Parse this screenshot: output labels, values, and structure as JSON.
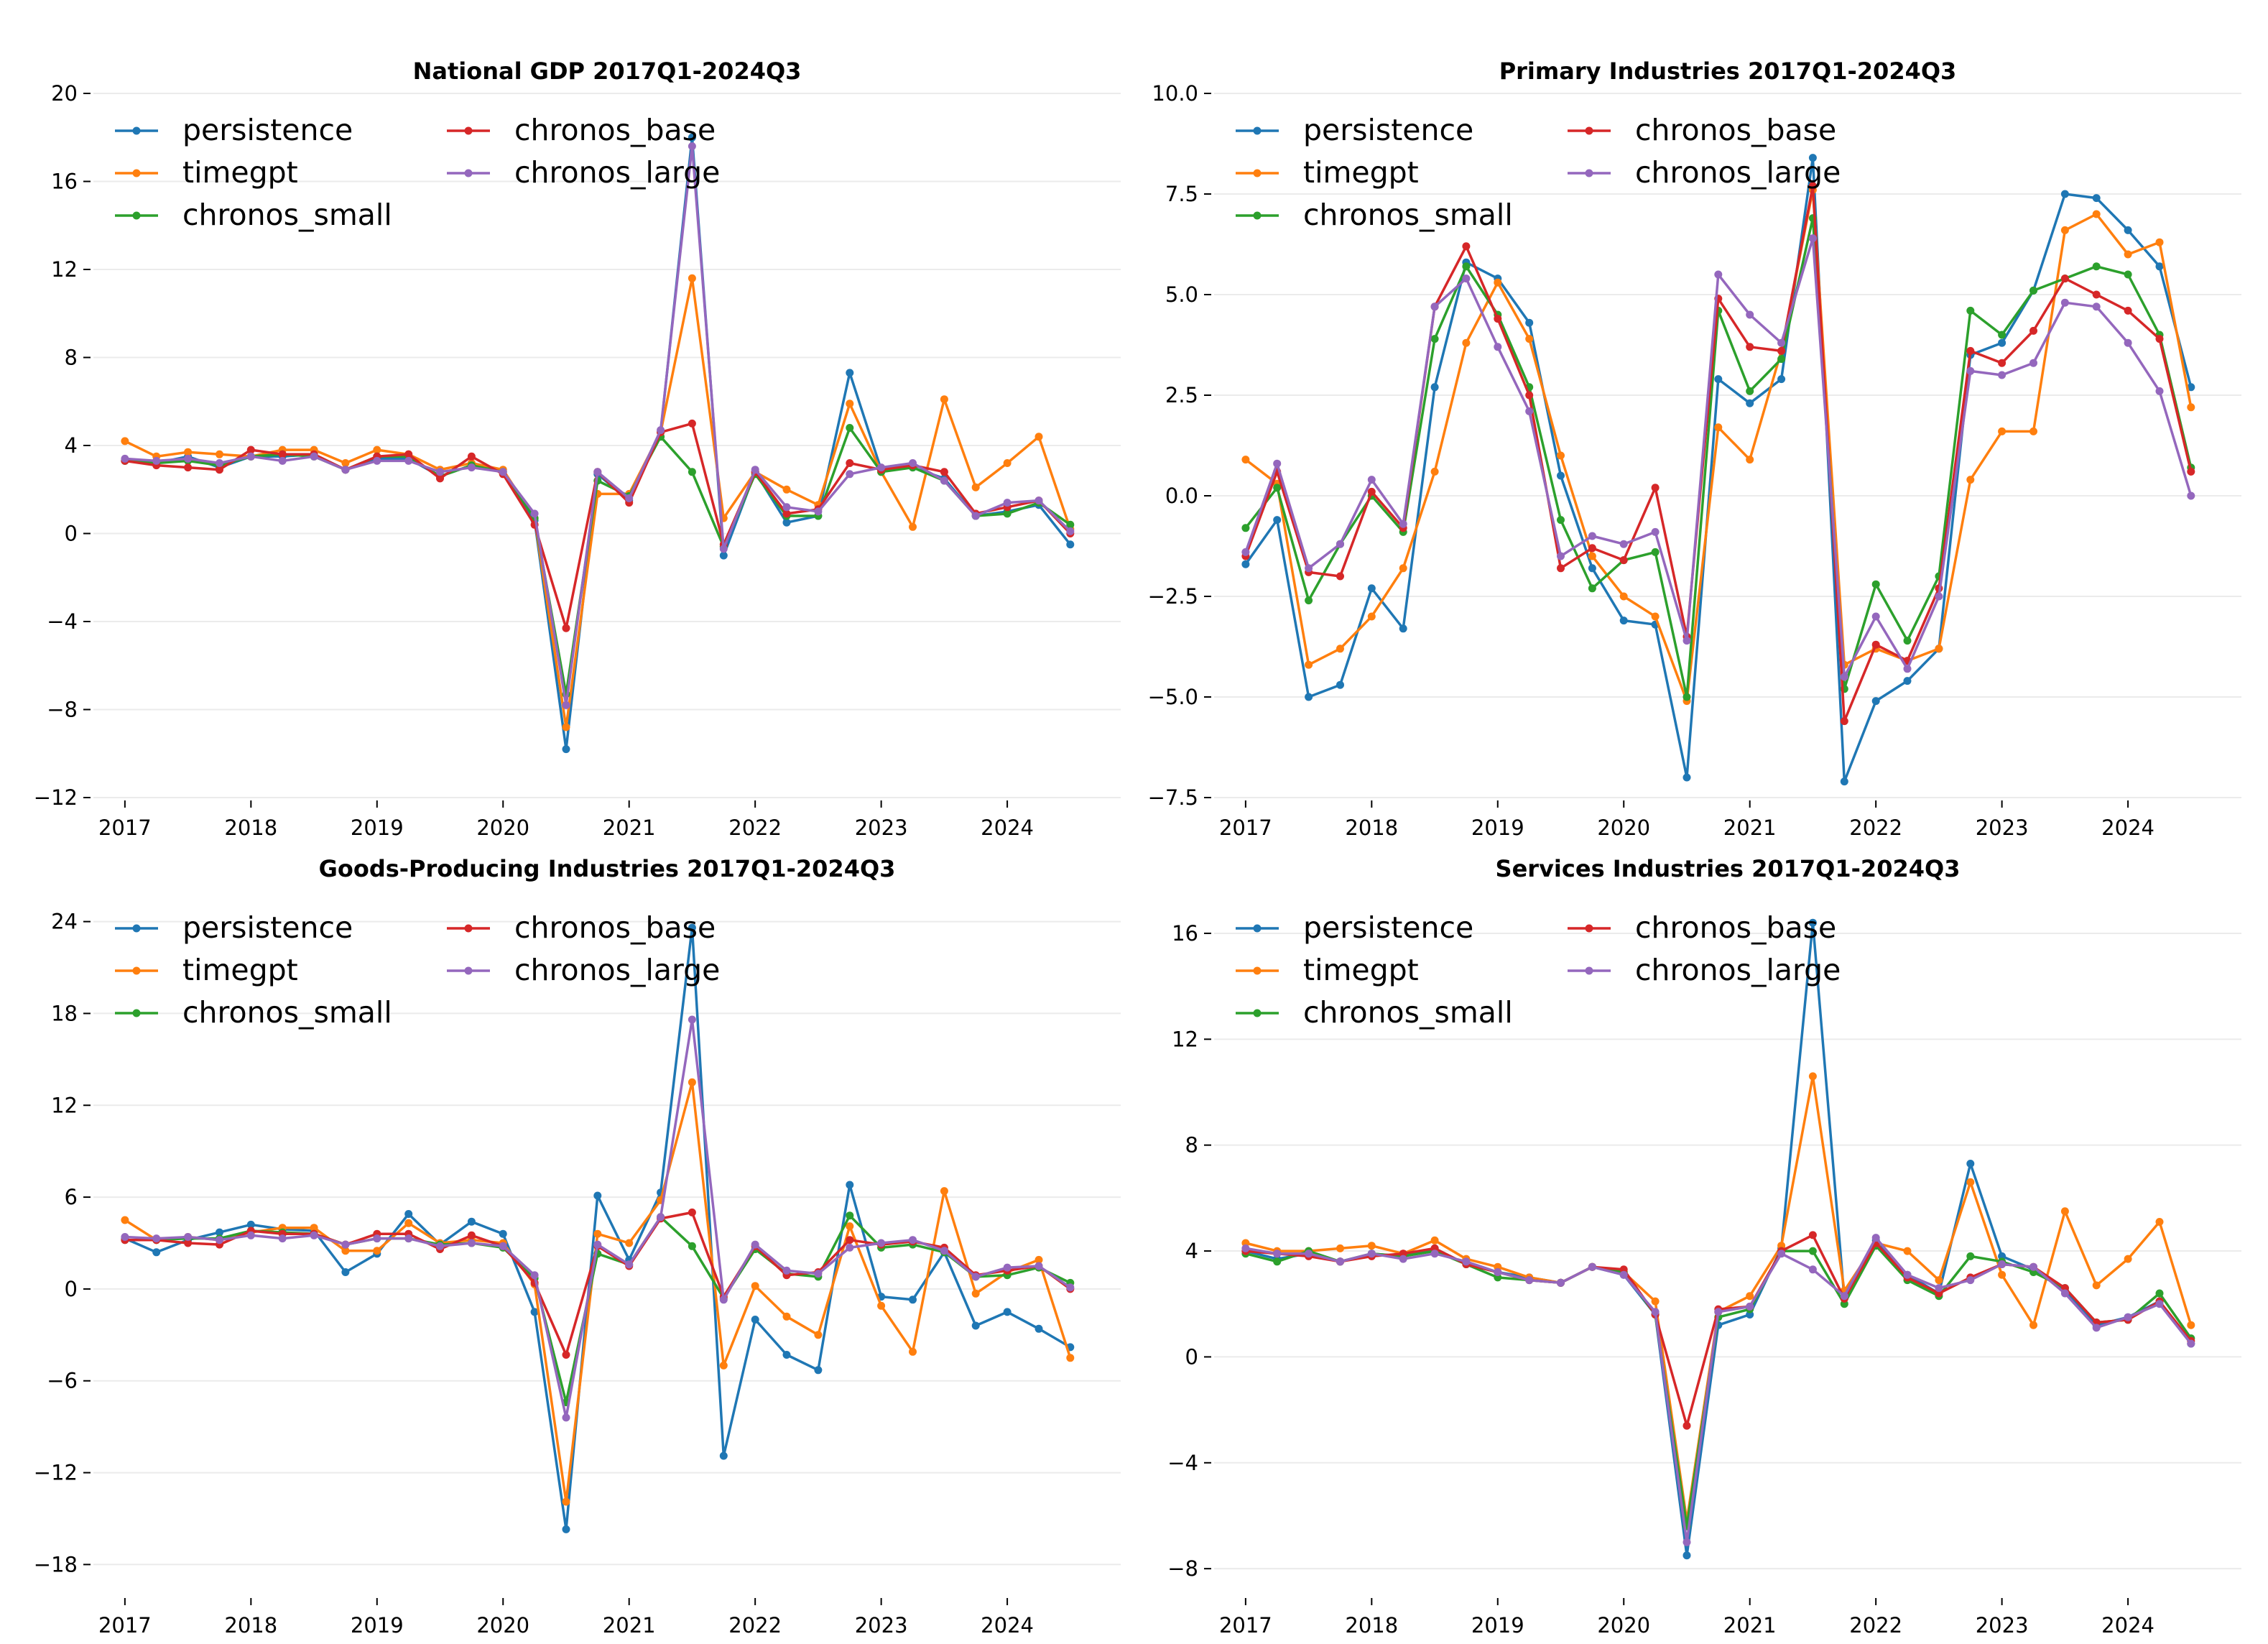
{
  "figure": {
    "x_tick_labels": [
      "2017",
      "2018",
      "2019",
      "2020",
      "2021",
      "2022",
      "2023",
      "2024"
    ],
    "series_colors": {
      "persistence": "#1f77b4",
      "timegpt": "#ff7f0e",
      "chronos_small": "#2ca02c",
      "chronos_base": "#d62728",
      "chronos_large": "#9467bd"
    }
  },
  "chart_data": [
    {
      "type": "line",
      "title": "National GDP 2017Q1-2024Q3",
      "xlabel": "",
      "ylabel": "",
      "x": [
        2017.0,
        2017.25,
        2017.5,
        2017.75,
        2018.0,
        2018.25,
        2018.5,
        2018.75,
        2019.0,
        2019.25,
        2019.5,
        2019.75,
        2020.0,
        2020.25,
        2020.5,
        2020.75,
        2021.0,
        2021.25,
        2021.5,
        2021.75,
        2022.0,
        2022.25,
        2022.5,
        2022.75,
        2023.0,
        2023.25,
        2023.5,
        2023.75,
        2024.0,
        2024.25,
        2024.5
      ],
      "xlim": [
        2016.75,
        2024.9
      ],
      "ylim": [
        -12,
        20
      ],
      "yticks": [
        -12,
        -8,
        -4,
        0,
        4,
        8,
        12,
        16,
        20
      ],
      "ytick_labels": [
        "−12",
        "−8",
        "−4",
        "0",
        "4",
        "8",
        "12",
        "16",
        "20"
      ],
      "legend": "top-left",
      "series": [
        {
          "name": "persistence",
          "values": [
            3.3,
            3.2,
            3.5,
            3.0,
            3.5,
            3.5,
            3.6,
            2.9,
            3.4,
            3.4,
            2.6,
            3.1,
            2.8,
            0.6,
            -9.8,
            2.7,
            1.5,
            4.6,
            18.0,
            -1.0,
            2.8,
            0.5,
            0.8,
            7.3,
            2.9,
            3.0,
            2.5,
            0.8,
            1.0,
            1.3,
            -0.5
          ]
        },
        {
          "name": "timegpt",
          "values": [
            4.2,
            3.5,
            3.7,
            3.6,
            3.5,
            3.8,
            3.8,
            3.2,
            3.8,
            3.6,
            2.9,
            3.2,
            2.9,
            0.7,
            -8.8,
            1.8,
            1.8,
            4.6,
            11.6,
            0.7,
            2.8,
            2.0,
            1.3,
            5.9,
            2.8,
            0.3,
            6.1,
            2.1,
            3.2,
            4.4,
            0.2
          ]
        },
        {
          "name": "chronos_small",
          "values": [
            3.3,
            3.2,
            3.3,
            3.1,
            3.5,
            3.6,
            3.5,
            2.9,
            3.5,
            3.5,
            2.6,
            3.1,
            2.8,
            0.7,
            -7.3,
            2.4,
            1.7,
            4.4,
            2.8,
            -0.6,
            2.7,
            0.8,
            0.8,
            4.8,
            2.8,
            3.0,
            2.4,
            0.8,
            0.9,
            1.4,
            0.4
          ]
        },
        {
          "name": "chronos_base",
          "values": [
            3.3,
            3.1,
            3.0,
            2.9,
            3.8,
            3.6,
            3.6,
            2.9,
            3.5,
            3.6,
            2.5,
            3.5,
            2.7,
            0.4,
            -4.3,
            2.8,
            1.4,
            4.6,
            5.0,
            -0.5,
            2.8,
            0.9,
            1.1,
            3.2,
            2.9,
            3.1,
            2.8,
            0.9,
            1.2,
            1.5,
            0.0
          ]
        },
        {
          "name": "chronos_large",
          "values": [
            3.4,
            3.3,
            3.4,
            3.2,
            3.5,
            3.3,
            3.5,
            2.9,
            3.3,
            3.3,
            2.8,
            3.0,
            2.8,
            0.9,
            -7.8,
            2.8,
            1.6,
            4.7,
            17.6,
            -0.7,
            2.9,
            1.2,
            1.0,
            2.7,
            3.0,
            3.2,
            2.4,
            0.8,
            1.4,
            1.5,
            0.1
          ]
        }
      ]
    },
    {
      "type": "line",
      "title": "Primary Industries 2017Q1-2024Q3",
      "xlabel": "",
      "ylabel": "",
      "x": [
        2017.0,
        2017.25,
        2017.5,
        2017.75,
        2018.0,
        2018.25,
        2018.5,
        2018.75,
        2019.0,
        2019.25,
        2019.5,
        2019.75,
        2020.0,
        2020.25,
        2020.5,
        2020.75,
        2021.0,
        2021.25,
        2021.5,
        2021.75,
        2022.0,
        2022.25,
        2022.5,
        2022.75,
        2023.0,
        2023.25,
        2023.5,
        2023.75,
        2024.0,
        2024.25,
        2024.5
      ],
      "xlim": [
        2016.75,
        2024.9
      ],
      "ylim": [
        -7.5,
        10.0
      ],
      "yticks": [
        -7.5,
        -5.0,
        -2.5,
        0.0,
        2.5,
        5.0,
        7.5,
        10.0
      ],
      "ytick_labels": [
        "−7.5",
        "−5.0",
        "−2.5",
        "0.0",
        "2.5",
        "5.0",
        "7.5",
        "10.0"
      ],
      "legend": "top-left",
      "series": [
        {
          "name": "persistence",
          "values": [
            -1.7,
            -0.6,
            -5.0,
            -4.7,
            -2.3,
            -3.3,
            2.7,
            5.8,
            5.4,
            4.3,
            0.5,
            -1.8,
            -3.1,
            -3.2,
            -7.0,
            2.9,
            2.3,
            2.9,
            8.4,
            -7.1,
            -5.1,
            -4.6,
            -3.8,
            3.5,
            3.8,
            5.1,
            7.5,
            7.4,
            6.6,
            5.7,
            2.7
          ]
        },
        {
          "name": "timegpt",
          "values": [
            0.9,
            0.3,
            -4.2,
            -3.8,
            -3.0,
            -1.8,
            0.6,
            3.8,
            5.3,
            3.9,
            1.0,
            -1.5,
            -2.5,
            -3.0,
            -5.1,
            1.7,
            0.9,
            3.6,
            7.6,
            -4.2,
            -3.8,
            -4.1,
            -3.8,
            0.4,
            1.6,
            1.6,
            6.6,
            7.0,
            6.0,
            6.3,
            2.2
          ]
        },
        {
          "name": "chronos_small",
          "values": [
            -0.8,
            0.2,
            -2.6,
            -1.2,
            0.0,
            -0.9,
            3.9,
            5.7,
            4.5,
            2.7,
            -0.6,
            -2.3,
            -1.6,
            -1.4,
            -5.0,
            4.6,
            2.6,
            3.4,
            6.9,
            -4.8,
            -2.2,
            -3.6,
            -2.0,
            4.6,
            4.0,
            5.1,
            5.4,
            5.7,
            5.5,
            4.0,
            0.7
          ]
        },
        {
          "name": "chronos_base",
          "values": [
            -1.5,
            0.6,
            -1.9,
            -2.0,
            0.1,
            -0.8,
            4.7,
            6.2,
            4.4,
            2.5,
            -1.8,
            -1.3,
            -1.6,
            0.2,
            -3.5,
            4.9,
            3.7,
            3.6,
            7.7,
            -5.6,
            -3.7,
            -4.1,
            -2.3,
            3.6,
            3.3,
            4.1,
            5.4,
            5.0,
            4.6,
            3.9,
            0.6
          ]
        },
        {
          "name": "chronos_large",
          "values": [
            -1.4,
            0.8,
            -1.8,
            -1.2,
            0.4,
            -0.7,
            4.7,
            5.4,
            3.7,
            2.1,
            -1.5,
            -1.0,
            -1.2,
            -0.9,
            -3.6,
            5.5,
            4.5,
            3.8,
            6.4,
            -4.5,
            -3.0,
            -4.3,
            -2.5,
            3.1,
            3.0,
            3.3,
            4.8,
            4.7,
            3.8,
            2.6,
            0.0
          ]
        }
      ]
    },
    {
      "type": "line",
      "title": "Goods-Producing Industries 2017Q1-2024Q3",
      "xlabel": "",
      "ylabel": "",
      "x": [
        2017.0,
        2017.25,
        2017.5,
        2017.75,
        2018.0,
        2018.25,
        2018.5,
        2018.75,
        2019.0,
        2019.25,
        2019.5,
        2019.75,
        2020.0,
        2020.25,
        2020.5,
        2020.75,
        2021.0,
        2021.25,
        2021.5,
        2021.75,
        2022.0,
        2022.25,
        2022.5,
        2022.75,
        2023.0,
        2023.25,
        2023.5,
        2023.75,
        2024.0,
        2024.25,
        2024.5
      ],
      "xlim": [
        2016.75,
        2024.9
      ],
      "ylim": [
        -20,
        26
      ],
      "yticks": [
        -18,
        -12,
        -6,
        0,
        6,
        12,
        18,
        24
      ],
      "ytick_labels": [
        "−18",
        "−12",
        "−6",
        "0",
        "6",
        "12",
        "18",
        "24"
      ],
      "legend": "top-left",
      "series": [
        {
          "name": "persistence",
          "values": [
            3.3,
            2.4,
            3.2,
            3.7,
            4.2,
            3.9,
            3.8,
            1.1,
            2.3,
            4.9,
            2.9,
            4.4,
            3.6,
            -1.5,
            -15.7,
            6.1,
            1.9,
            6.3,
            23.6,
            -10.9,
            -2.0,
            -4.3,
            -5.3,
            6.8,
            -0.5,
            -0.7,
            2.4,
            -2.4,
            -1.5,
            -2.6,
            -3.8
          ]
        },
        {
          "name": "timegpt",
          "values": [
            4.5,
            3.2,
            3.4,
            3.2,
            3.7,
            4.0,
            4.0,
            2.5,
            2.5,
            4.3,
            3.0,
            3.2,
            3.0,
            0.3,
            -13.9,
            3.6,
            3.0,
            5.8,
            13.5,
            -5.0,
            0.2,
            -1.8,
            -3.0,
            4.1,
            -1.1,
            -4.1,
            6.4,
            -0.3,
            1.1,
            1.9,
            -4.5
          ]
        },
        {
          "name": "chronos_small",
          "values": [
            3.2,
            3.2,
            3.3,
            3.3,
            3.8,
            3.7,
            3.6,
            2.9,
            3.3,
            3.3,
            2.9,
            3.0,
            2.7,
            0.7,
            -7.4,
            2.3,
            1.6,
            4.7,
            2.8,
            -0.6,
            2.6,
            1.0,
            0.8,
            4.8,
            2.7,
            2.9,
            2.4,
            0.8,
            0.9,
            1.4,
            0.4
          ]
        },
        {
          "name": "chronos_base",
          "values": [
            3.2,
            3.2,
            3.0,
            2.9,
            3.8,
            3.6,
            3.6,
            2.9,
            3.6,
            3.6,
            2.6,
            3.5,
            2.8,
            0.4,
            -4.3,
            2.8,
            1.5,
            4.6,
            5.0,
            -0.5,
            2.8,
            0.9,
            1.1,
            3.2,
            2.9,
            3.1,
            2.7,
            0.9,
            1.2,
            1.5,
            0.0
          ]
        },
        {
          "name": "chronos_large",
          "values": [
            3.4,
            3.3,
            3.4,
            3.2,
            3.5,
            3.3,
            3.5,
            2.9,
            3.3,
            3.3,
            2.8,
            3.0,
            2.8,
            0.9,
            -8.4,
            2.9,
            1.6,
            4.7,
            17.6,
            -0.7,
            2.9,
            1.2,
            1.0,
            2.7,
            3.0,
            3.2,
            2.5,
            0.8,
            1.4,
            1.5,
            0.1
          ]
        }
      ]
    },
    {
      "type": "line",
      "title": "Services Industries 2017Q1-2024Q3",
      "xlabel": "",
      "ylabel": "",
      "x": [
        2017.0,
        2017.25,
        2017.5,
        2017.75,
        2018.0,
        2018.25,
        2018.5,
        2018.75,
        2019.0,
        2019.25,
        2019.5,
        2019.75,
        2020.0,
        2020.25,
        2020.5,
        2020.75,
        2021.0,
        2021.25,
        2021.5,
        2021.75,
        2022.0,
        2022.25,
        2022.5,
        2022.75,
        2023.0,
        2023.25,
        2023.5,
        2023.75,
        2024.0,
        2024.25,
        2024.5
      ],
      "xlim": [
        2016.75,
        2024.9
      ],
      "ylim": [
        -9,
        17.6
      ],
      "yticks": [
        -8,
        -4,
        0,
        4,
        8,
        12,
        16
      ],
      "ytick_labels": [
        "−8",
        "−4",
        "0",
        "4",
        "8",
        "12",
        "16"
      ],
      "legend": "top-left",
      "series": [
        {
          "name": "persistence",
          "values": [
            4.0,
            3.7,
            3.9,
            3.6,
            3.9,
            3.8,
            4.1,
            3.5,
            3.2,
            3.0,
            2.8,
            3.4,
            3.1,
            1.6,
            -7.5,
            1.2,
            1.6,
            4.1,
            16.4,
            2.2,
            4.4,
            3.1,
            2.4,
            7.3,
            3.8,
            3.3,
            2.5,
            1.2,
            1.5,
            2.1,
            0.5
          ]
        },
        {
          "name": "timegpt",
          "values": [
            4.3,
            4.0,
            4.0,
            4.1,
            4.2,
            3.9,
            4.4,
            3.7,
            3.4,
            3.0,
            2.8,
            3.4,
            3.2,
            2.1,
            -6.2,
            1.7,
            2.3,
            4.2,
            10.6,
            2.5,
            4.3,
            4.0,
            2.9,
            6.6,
            3.1,
            1.2,
            5.5,
            2.7,
            3.7,
            5.1,
            1.2
          ]
        },
        {
          "name": "chronos_small",
          "values": [
            3.9,
            3.6,
            4.0,
            3.6,
            3.9,
            3.8,
            4.0,
            3.5,
            3.0,
            2.9,
            2.8,
            3.4,
            3.2,
            1.6,
            -6.4,
            1.5,
            1.8,
            4.0,
            4.0,
            2.0,
            4.2,
            2.9,
            2.3,
            3.8,
            3.6,
            3.2,
            2.6,
            1.3,
            1.4,
            2.4,
            0.7
          ]
        },
        {
          "name": "chronos_base",
          "values": [
            4.0,
            3.9,
            3.8,
            3.6,
            3.8,
            3.9,
            4.1,
            3.5,
            3.2,
            2.9,
            2.8,
            3.4,
            3.3,
            1.6,
            -2.6,
            1.8,
            1.9,
            4.0,
            4.6,
            2.2,
            4.3,
            3.0,
            2.4,
            3.0,
            3.5,
            3.4,
            2.6,
            1.3,
            1.4,
            2.1,
            0.6
          ]
        },
        {
          "name": "chronos_large",
          "values": [
            4.1,
            3.9,
            3.9,
            3.6,
            3.9,
            3.7,
            3.9,
            3.6,
            3.2,
            2.9,
            2.8,
            3.4,
            3.1,
            1.7,
            -7.0,
            1.7,
            1.9,
            3.9,
            3.3,
            2.3,
            4.5,
            3.1,
            2.6,
            2.9,
            3.5,
            3.4,
            2.4,
            1.1,
            1.5,
            2.0,
            0.5
          ]
        }
      ]
    }
  ]
}
